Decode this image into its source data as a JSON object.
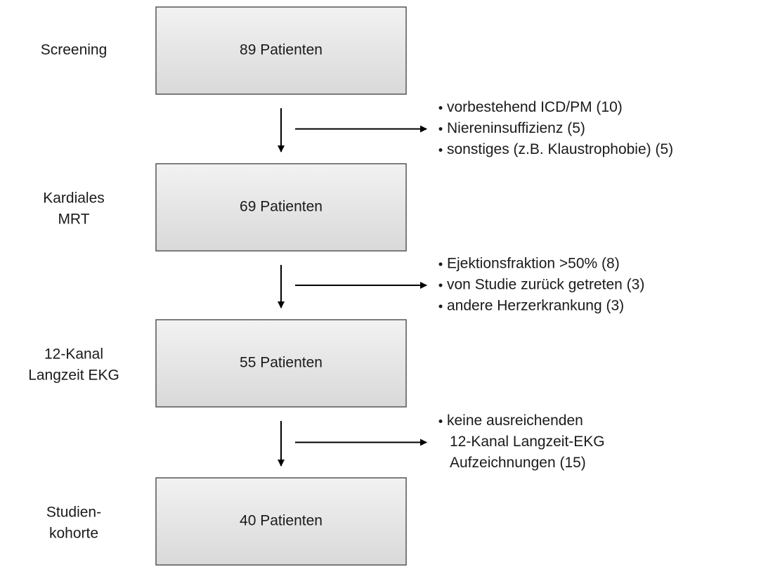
{
  "stages": [
    {
      "label": [
        "Screening"
      ],
      "count": "89 Patienten"
    },
    {
      "label": [
        "Kardiales",
        "MRT"
      ],
      "count": "69 Patienten"
    },
    {
      "label": [
        "12-Kanal",
        "Langzeit EKG"
      ],
      "count": "55 Patienten"
    },
    {
      "label": [
        "Studien-",
        "kohorte"
      ],
      "count": "40 Patienten"
    }
  ],
  "exclusions": [
    {
      "items": [
        [
          "vorbestehend ICD/PM (10)"
        ],
        [
          "Niereninsuffizienz (5)"
        ],
        [
          "sonstiges (z.B. Klaustrophobie) (5)"
        ]
      ]
    },
    {
      "items": [
        [
          "Ejektionsfraktion >50% (8)"
        ],
        [
          "von Studie zurück getreten (3)"
        ],
        [
          "andere Herzerkrankung (3)"
        ]
      ]
    },
    {
      "items": [
        [
          "keine ausreichenden",
          "12-Kanal Langzeit-EKG",
          "Aufzeichnungen (15)"
        ]
      ]
    }
  ]
}
